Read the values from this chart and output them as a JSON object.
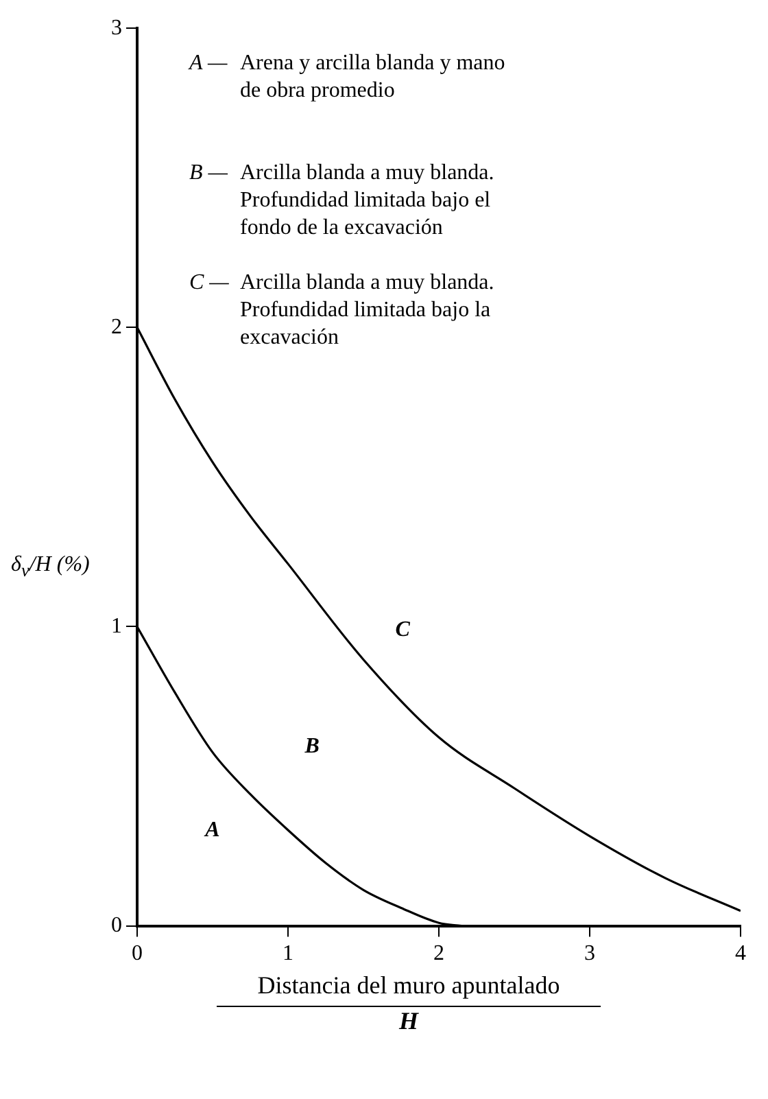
{
  "chart_data": {
    "type": "line",
    "xlabel": "Distancia del muro apuntalado",
    "ylabel": "δ$_{v}$/H (%)",
    "xlim": [
      0,
      4
    ],
    "ylim": [
      0,
      3
    ],
    "xticks": [
      0,
      1,
      2,
      3,
      4
    ],
    "yticks": [
      0,
      1,
      2,
      3
    ],
    "grid": false,
    "legend": false,
    "marker": "none",
    "line_style": "solid",
    "series": [
      {
        "color": "#000000",
        "x": [
          0,
          0.25,
          0.5,
          0.75,
          1,
          1.25,
          1.5,
          1.75,
          2,
          2.15
        ],
        "values": [
          1,
          0.78,
          0.58,
          0.44,
          0.32,
          0.21,
          0.12,
          0.06,
          0.01,
          0
        ]
      },
      {
        "color": "#000000",
        "x": [
          0,
          0.25,
          0.5,
          0.75,
          1,
          1.5,
          2,
          2.5,
          3,
          3.5,
          4
        ],
        "values": [
          2,
          1.76,
          1.55,
          1.37,
          1.21,
          0.89,
          0.63,
          0.46,
          0.3,
          0.16,
          0.05
        ]
      }
    ],
    "annotations": [
      "A — Arena y arcilla blanda y mano de obra promedio",
      "B — Arcilla blanda a muy blanda. Profundidad limitada bajo el fondo de la excavación",
      "C — Arcilla blanda a muy blanda. Profundidad limitada bajo la excavación",
      "A",
      "B",
      "C",
      "H"
    ]
  }
}
